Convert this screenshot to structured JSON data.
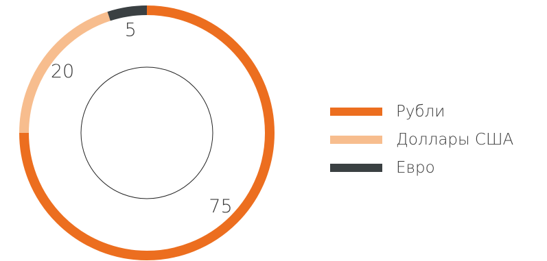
{
  "chart_data": {
    "type": "pie",
    "style": "donut",
    "slices": [
      {
        "label": "Рубли",
        "value": 75,
        "value_label": "75",
        "color": "#EC6E1F"
      },
      {
        "label": "Доллары США",
        "value": 20,
        "value_label": "20",
        "color": "#F7BD8E"
      },
      {
        "label": "Евро",
        "value": 5,
        "value_label": "5",
        "color": "#3A4042"
      }
    ],
    "legend_position": "right"
  }
}
